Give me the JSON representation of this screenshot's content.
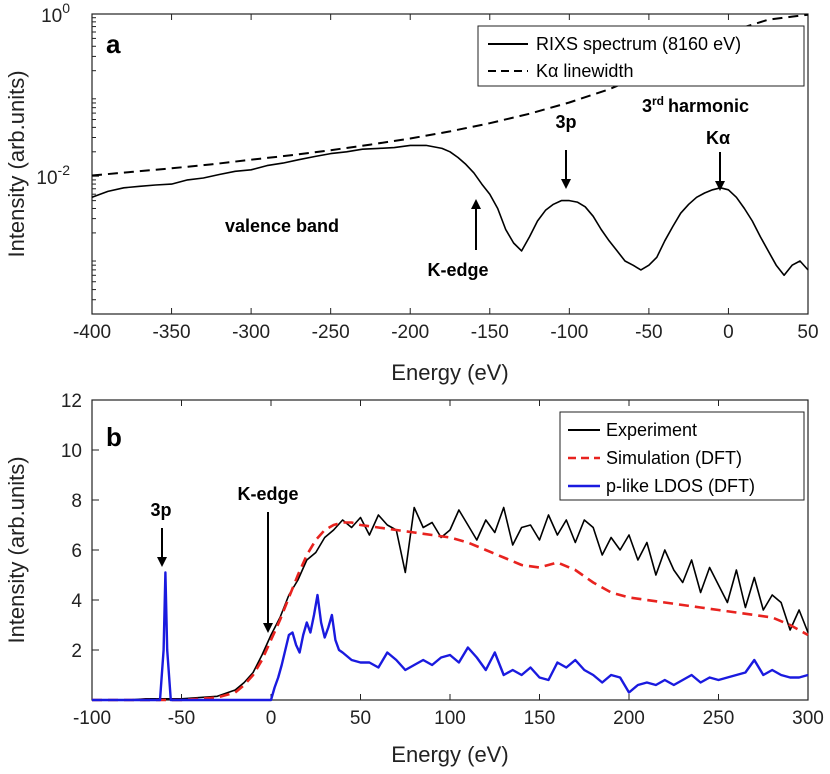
{
  "chart_data": [
    {
      "type": "line",
      "panel_label": "a",
      "xlabel": "Energy (eV)",
      "ylabel": "Intensity (arb.units)",
      "xlim": [
        -400,
        50
      ],
      "yscale": "log",
      "ylim": [
        0.0002,
        1
      ],
      "x_ticks": [
        -400,
        -350,
        -300,
        -250,
        -200,
        -150,
        -100,
        -50,
        0,
        50
      ],
      "y_ticks": [
        {
          "value": 0.01,
          "base": "10",
          "exp": "-2"
        },
        {
          "value": 1,
          "base": "10",
          "exp": "0"
        }
      ],
      "series": [
        {
          "name": "RIXS spectrum (8160 eV)",
          "color": "#000000",
          "style": "solid",
          "x": [
            -400,
            -390,
            -380,
            -370,
            -360,
            -350,
            -340,
            -330,
            -320,
            -310,
            -300,
            -290,
            -280,
            -270,
            -260,
            -250,
            -240,
            -230,
            -220,
            -210,
            -200,
            -190,
            -180,
            -175,
            -170,
            -165,
            -160,
            -155,
            -150,
            -145,
            -140,
            -135,
            -130,
            -125,
            -120,
            -115,
            -110,
            -105,
            -100,
            -95,
            -90,
            -85,
            -80,
            -75,
            -70,
            -65,
            -60,
            -55,
            -50,
            -45,
            -40,
            -35,
            -30,
            -25,
            -20,
            -15,
            -10,
            -5,
            0,
            5,
            10,
            15,
            20,
            25,
            30,
            35,
            40,
            45,
            50
          ],
          "y": [
            0.0055,
            0.0065,
            0.0072,
            0.0075,
            0.0078,
            0.008,
            0.009,
            0.0095,
            0.0105,
            0.0115,
            0.012,
            0.0135,
            0.0145,
            0.016,
            0.0175,
            0.019,
            0.02,
            0.0215,
            0.022,
            0.0225,
            0.024,
            0.024,
            0.022,
            0.02,
            0.017,
            0.014,
            0.011,
            0.008,
            0.006,
            0.004,
            0.0022,
            0.0015,
            0.0012,
            0.0018,
            0.0028,
            0.0038,
            0.0045,
            0.005,
            0.005,
            0.0048,
            0.0042,
            0.0032,
            0.0022,
            0.0016,
            0.0012,
            0.0009,
            0.0008,
            0.0007,
            0.0008,
            0.001,
            0.0016,
            0.0024,
            0.0035,
            0.0045,
            0.0055,
            0.0062,
            0.0068,
            0.0072,
            0.0068,
            0.0055,
            0.004,
            0.0028,
            0.0018,
            0.0012,
            0.0008,
            0.0006,
            0.0008,
            0.0009,
            0.0007
          ]
        },
        {
          "name": "Kα linewidth",
          "color": "#000000",
          "style": "dashed",
          "x": [
            -400,
            -375,
            -350,
            -325,
            -300,
            -275,
            -250,
            -225,
            -200,
            -175,
            -150,
            -125,
            -100,
            -75,
            -50,
            -25,
            0,
            25,
            40,
            50
          ],
          "y": [
            0.0102,
            0.0113,
            0.0125,
            0.014,
            0.016,
            0.0181,
            0.0209,
            0.0245,
            0.0292,
            0.0357,
            0.045,
            0.059,
            0.081,
            0.118,
            0.19,
            0.33,
            0.6,
            0.85,
            0.93,
            0.98
          ]
        }
      ],
      "legend": {
        "position": "top-right"
      },
      "annotations": [
        {
          "text": "valence band"
        },
        {
          "text": "K-edge",
          "x": -155
        },
        {
          "text": "3p",
          "x": -101
        },
        {
          "text": "harmonic",
          "prefix": "3",
          "sup": "rd",
          "x": -3
        },
        {
          "text": "Kα",
          "x": -3
        }
      ]
    },
    {
      "type": "line",
      "panel_label": "b",
      "xlabel": "Energy (eV)",
      "ylabel": "Intensity (arb.units)",
      "xlim": [
        -100,
        300
      ],
      "ylim": [
        0,
        12
      ],
      "x_ticks": [
        -100,
        -50,
        0,
        50,
        100,
        150,
        200,
        250,
        300
      ],
      "y_ticks": [
        2,
        4,
        6,
        8,
        10,
        12
      ],
      "series": [
        {
          "name": "Experiment",
          "color": "#000000",
          "style": "solid",
          "x": [
            -100,
            -90,
            -80,
            -70,
            -60,
            -50,
            -40,
            -30,
            -20,
            -15,
            -10,
            -5,
            0,
            5,
            10,
            15,
            20,
            25,
            30,
            35,
            40,
            45,
            50,
            55,
            60,
            65,
            70,
            75,
            80,
            85,
            90,
            95,
            100,
            105,
            110,
            115,
            120,
            125,
            130,
            135,
            140,
            145,
            150,
            155,
            160,
            165,
            170,
            175,
            180,
            185,
            190,
            195,
            200,
            205,
            210,
            215,
            220,
            225,
            230,
            235,
            240,
            245,
            250,
            255,
            260,
            265,
            270,
            275,
            280,
            285,
            290,
            295,
            300
          ],
          "y": [
            0,
            0,
            0,
            0.05,
            0.05,
            0.05,
            0.1,
            0.15,
            0.4,
            0.7,
            1.1,
            1.8,
            2.6,
            3.3,
            4.2,
            4.8,
            5.6,
            5.9,
            6.5,
            6.8,
            7.2,
            6.9,
            7.3,
            6.6,
            7.4,
            7.0,
            6.8,
            5.1,
            7.7,
            6.9,
            7.1,
            6.5,
            6.8,
            7.6,
            7.0,
            6.4,
            7.2,
            6.7,
            7.7,
            6.2,
            6.9,
            7.0,
            6.4,
            7.4,
            6.6,
            7.2,
            6.3,
            7.2,
            6.9,
            5.8,
            6.5,
            6.0,
            6.6,
            5.6,
            6.3,
            5.0,
            6.0,
            5.2,
            4.7,
            5.6,
            4.3,
            5.3,
            4.6,
            3.9,
            5.2,
            3.7,
            4.9,
            3.6,
            4.2,
            3.9,
            2.8,
            3.6,
            2.7
          ]
        },
        {
          "name": "Simulation (DFT)",
          "color": "#e8231f",
          "style": "dashed",
          "x": [
            -100,
            -90,
            -80,
            -70,
            -60,
            -50,
            -40,
            -30,
            -20,
            -15,
            -10,
            -5,
            0,
            5,
            10,
            15,
            20,
            25,
            30,
            35,
            40,
            45,
            50,
            60,
            70,
            80,
            90,
            100,
            110,
            120,
            130,
            140,
            150,
            160,
            170,
            180,
            190,
            200,
            210,
            220,
            230,
            240,
            250,
            260,
            270,
            280,
            290,
            300
          ],
          "y": [
            0,
            0,
            0,
            0,
            0,
            0,
            0.05,
            0.1,
            0.3,
            0.6,
            1.0,
            1.6,
            2.4,
            3.2,
            4.1,
            5.0,
            5.8,
            6.4,
            6.8,
            7.0,
            7.1,
            7.1,
            7.0,
            6.9,
            6.8,
            6.7,
            6.6,
            6.5,
            6.3,
            6.0,
            5.7,
            5.4,
            5.3,
            5.5,
            5.2,
            4.7,
            4.3,
            4.1,
            4.0,
            3.9,
            3.8,
            3.7,
            3.6,
            3.5,
            3.4,
            3.3,
            3.0,
            2.6
          ]
        },
        {
          "name": "p-like LDOS (DFT)",
          "color": "#1a1adf",
          "style": "solid",
          "x": [
            -100,
            -70,
            -62,
            -60,
            -59,
            -58,
            -56,
            -45,
            -20,
            0,
            2,
            4,
            6,
            8,
            10,
            12,
            14,
            16,
            18,
            20,
            22,
            24,
            26,
            28,
            30,
            32,
            34,
            36,
            38,
            40,
            45,
            50,
            55,
            60,
            65,
            70,
            75,
            80,
            85,
            90,
            95,
            100,
            105,
            110,
            115,
            120,
            125,
            130,
            135,
            140,
            145,
            150,
            155,
            160,
            165,
            170,
            175,
            180,
            185,
            190,
            195,
            200,
            205,
            210,
            215,
            220,
            225,
            230,
            235,
            240,
            245,
            250,
            255,
            260,
            265,
            270,
            275,
            280,
            285,
            290,
            295,
            300
          ],
          "y": [
            0,
            0,
            0,
            2.0,
            5.1,
            2.0,
            0,
            0,
            0,
            0,
            0.5,
            0.9,
            1.4,
            2.0,
            2.6,
            2.7,
            2.2,
            1.9,
            2.6,
            3.1,
            2.7,
            3.4,
            4.2,
            3.1,
            2.5,
            2.9,
            3.4,
            2.4,
            2.0,
            1.9,
            1.6,
            1.5,
            1.5,
            1.3,
            1.9,
            1.6,
            1.2,
            1.4,
            1.6,
            1.4,
            1.7,
            1.8,
            1.5,
            2.1,
            1.7,
            1.2,
            1.9,
            1.0,
            1.2,
            1.0,
            1.3,
            0.9,
            0.8,
            1.5,
            1.3,
            1.6,
            1.2,
            1.0,
            0.7,
            1.0,
            0.9,
            0.3,
            0.6,
            0.7,
            0.6,
            0.8,
            0.6,
            0.8,
            1.0,
            0.7,
            0.9,
            0.8,
            0.9,
            1.0,
            1.1,
            1.6,
            1.0,
            1.2,
            1.0,
            0.9,
            0.9,
            1.0
          ]
        }
      ],
      "legend": {
        "position": "top-right"
      },
      "annotations": [
        {
          "text": "3p",
          "x": -58
        },
        {
          "text": "K-edge",
          "x": 0
        }
      ]
    }
  ]
}
